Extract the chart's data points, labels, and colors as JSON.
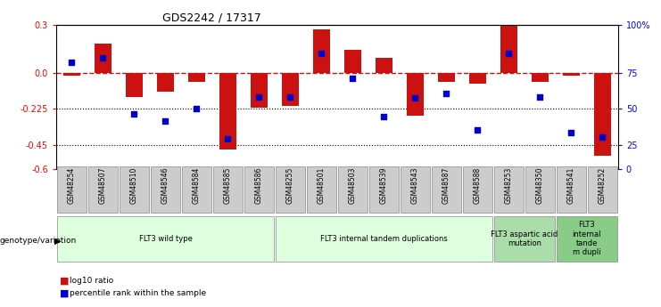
{
  "title": "GDS2242 / 17317",
  "samples": [
    "GSM48254",
    "GSM48507",
    "GSM48510",
    "GSM48546",
    "GSM48584",
    "GSM48585",
    "GSM48586",
    "GSM48255",
    "GSM48501",
    "GSM48503",
    "GSM48539",
    "GSM48543",
    "GSM48587",
    "GSM48588",
    "GSM48253",
    "GSM48350",
    "GSM48541",
    "GSM48252"
  ],
  "log10_ratio": [
    -0.02,
    0.18,
    -0.15,
    -0.12,
    -0.06,
    -0.48,
    -0.22,
    -0.21,
    0.27,
    0.14,
    0.09,
    -0.27,
    -0.06,
    -0.07,
    0.3,
    -0.06,
    -0.02,
    -0.52
  ],
  "percentile": [
    74,
    77,
    38,
    33,
    42,
    21,
    50,
    50,
    80,
    63,
    36,
    49,
    52,
    27,
    80,
    50,
    25,
    22
  ],
  "ylim": [
    -0.6,
    0.3
  ],
  "yticks_left": [
    0.3,
    0.0,
    -0.225,
    -0.45,
    -0.6
  ],
  "yticks_right_vals": [
    0.3,
    0.0,
    -0.225,
    -0.45,
    -0.6
  ],
  "yticks_right_labels": [
    "100%",
    "75",
    "50",
    "25",
    "0"
  ],
  "hline_zero": 0.0,
  "hline_50pct": -0.225,
  "hline_25pct": -0.45,
  "bar_color": "#cc1111",
  "dot_color": "#0000cc",
  "sample_box_color": "#cccccc",
  "groups": [
    {
      "label": "FLT3 wild type",
      "start": 0,
      "end": 7,
      "color": "#ddffdd"
    },
    {
      "label": "FLT3 internal tandem duplications",
      "start": 7,
      "end": 14,
      "color": "#ddffdd"
    },
    {
      "label": "FLT3 aspartic acid\nmutation",
      "start": 14,
      "end": 16,
      "color": "#aaddaa"
    },
    {
      "label": "FLT3\ninternal\ntande\nm dupli",
      "start": 16,
      "end": 18,
      "color": "#88cc88"
    }
  ],
  "legend_bar_label": "log10 ratio",
  "legend_dot_label": "percentile rank within the sample",
  "genotype_label": "genotype/variation"
}
